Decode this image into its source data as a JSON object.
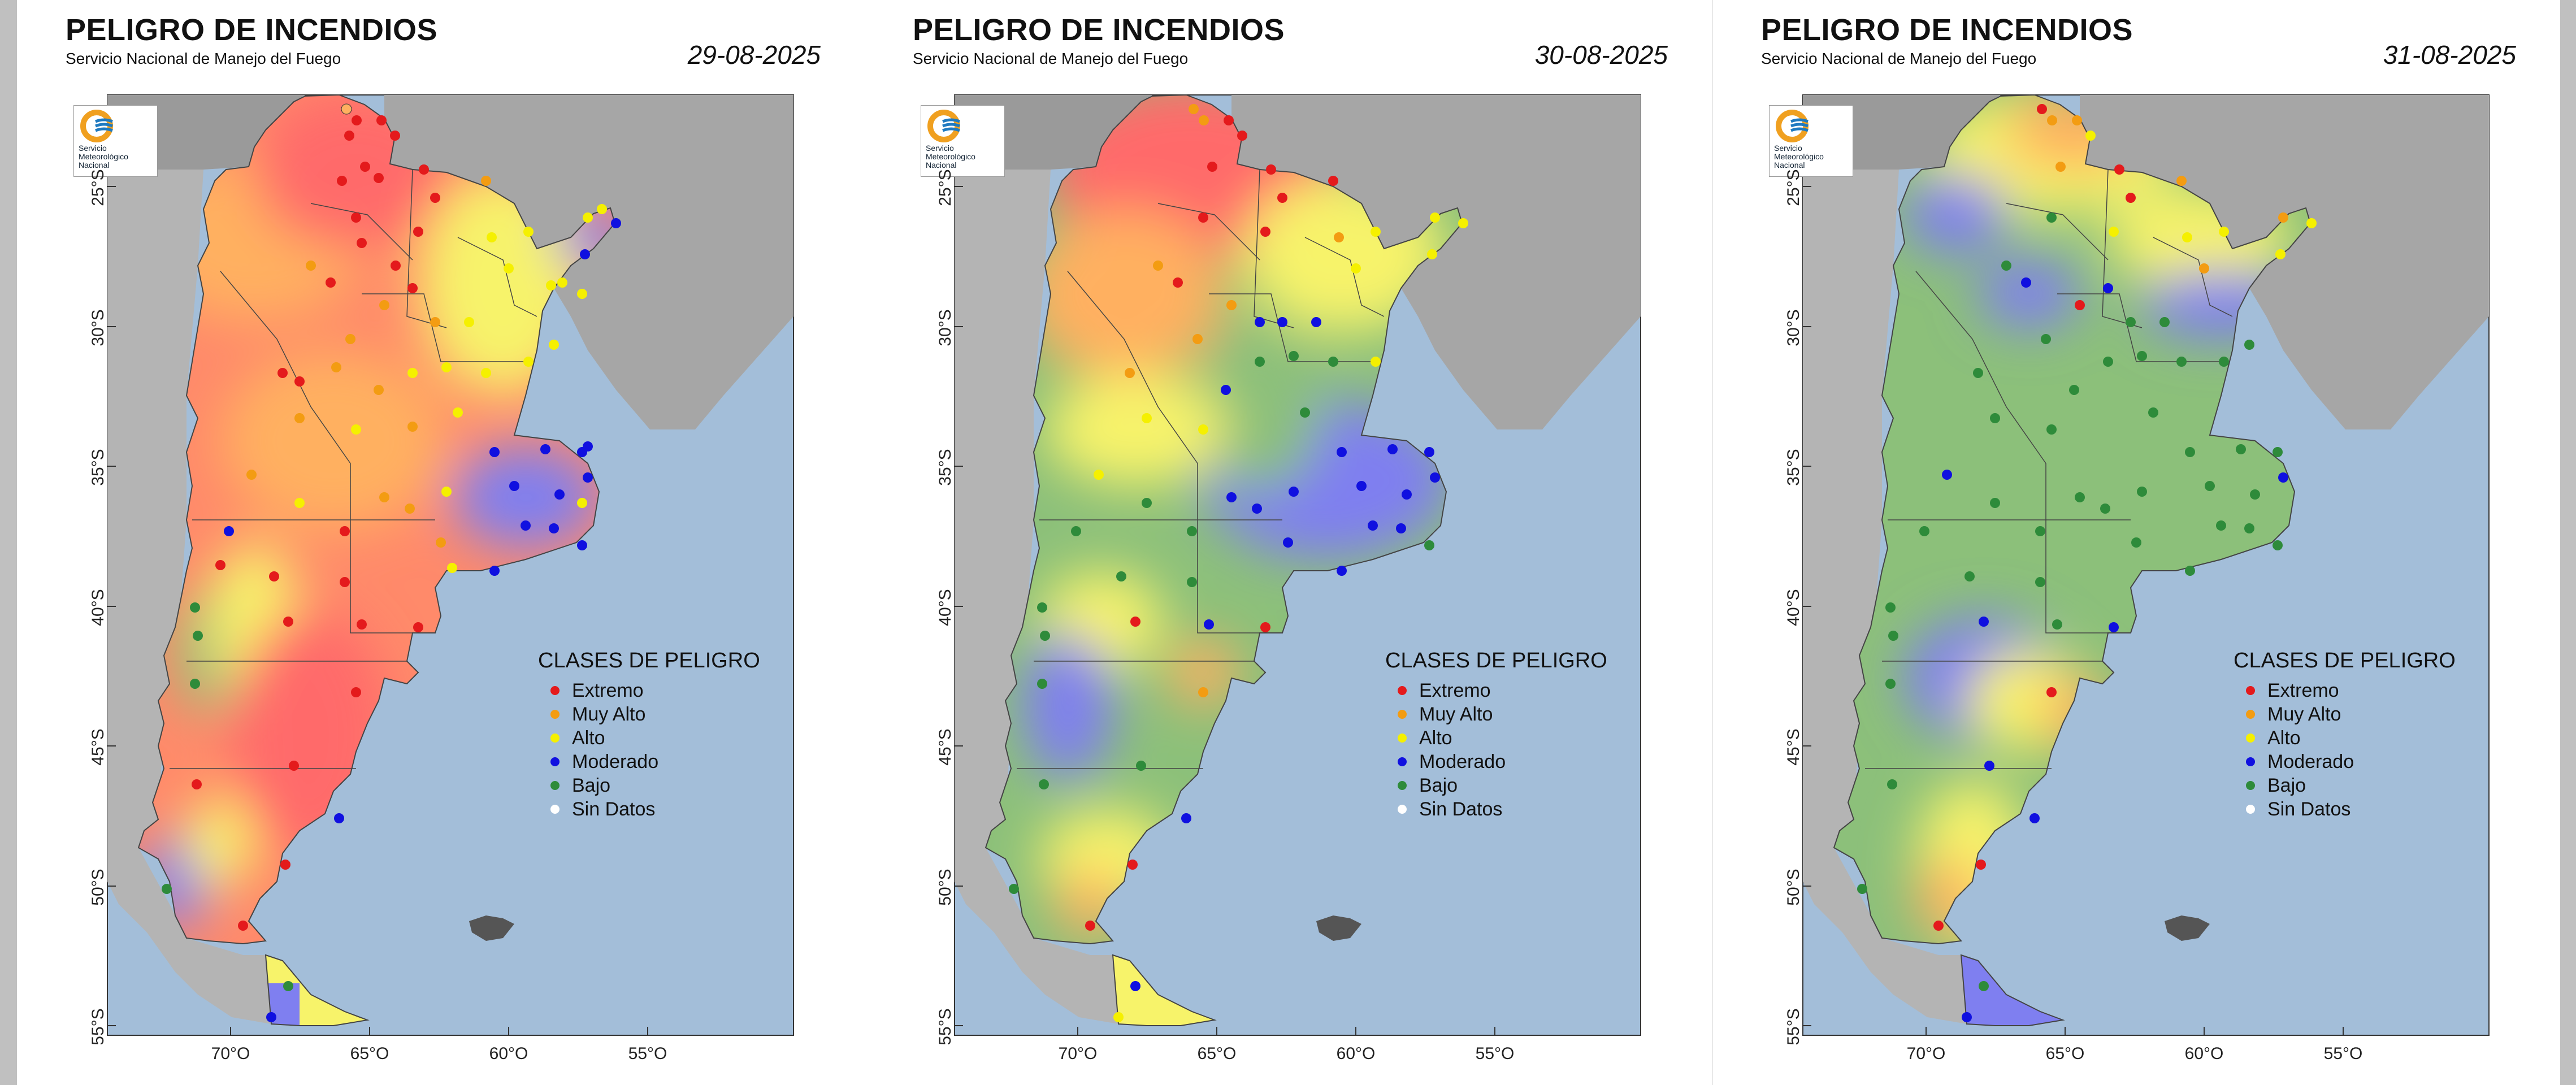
{
  "panels": [
    {
      "title": "PELIGRO DE INCENDIOS",
      "subtitle": "Servicio Nacional de Manejo del Fuego",
      "date": "29-08-2025"
    },
    {
      "title": "PELIGRO DE INCENDIOS",
      "subtitle": "Servicio Nacional de Manejo del Fuego",
      "date": "30-08-2025"
    },
    {
      "title": "PELIGRO DE INCENDIOS",
      "subtitle": "Servicio Nacional de Manejo del Fuego",
      "date": "31-08-2025"
    }
  ],
  "logo": {
    "line1": "Servicio",
    "line2": "Meteorológico",
    "line3": "Nacional"
  },
  "axes": {
    "lat_labels": [
      "25°S",
      "30°S",
      "35°S",
      "40°S",
      "45°S",
      "50°S",
      "55°S"
    ],
    "lon_labels": [
      "70°O",
      "65°O",
      "60°O",
      "55°O"
    ]
  },
  "legend": {
    "title": "CLASES DE PELIGRO",
    "items": [
      {
        "label": "Extremo",
        "color": "#e41a1c"
      },
      {
        "label": "Muy Alto",
        "color": "#f39c12"
      },
      {
        "label": "Alto",
        "color": "#f5f000"
      },
      {
        "label": "Moderado",
        "color": "#1010e0"
      },
      {
        "label": "Bajo",
        "color": "#2e8b3a"
      },
      {
        "label": "Sin Datos",
        "color": "#ffffff"
      }
    ]
  },
  "colors": {
    "ocean": "#a3bed9",
    "land": "#9a9a9a",
    "extremo": "#ff6b6b",
    "muy_alto": "#ffb060",
    "alto": "#f7f36a",
    "moderado": "#7f7ff0",
    "bajo": "#8cc07a"
  }
}
